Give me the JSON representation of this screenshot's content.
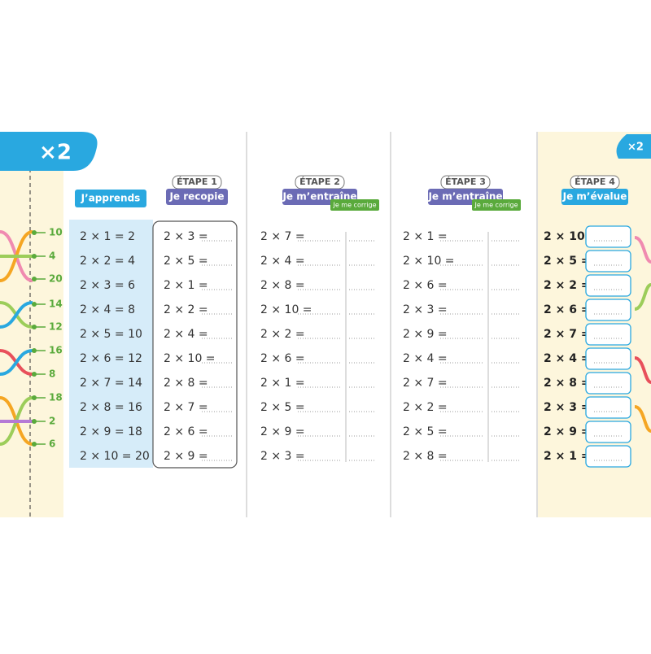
{
  "left_badge": "×2",
  "right_badge": "×2",
  "strip_numbers": [
    "10",
    "4",
    "20",
    "14",
    "12",
    "16",
    "8",
    "18",
    "2",
    "6"
  ],
  "apprends": {
    "label": "J’apprends",
    "rows": [
      "2 × 1 = 2",
      "2 × 2 = 4",
      "2 × 3 = 6",
      "2 × 4 = 8",
      "2 × 5 = 10",
      "2 × 6 = 12",
      "2 × 7 = 14",
      "2 × 8 = 16",
      "2 × 9 = 18",
      "2 × 10 = 20"
    ]
  },
  "etapes": [
    {
      "step": "ÉTAPE 1",
      "title": "Je recopie",
      "rows": [
        "2 × 3 =",
        "2 × 5 =",
        "2 × 1 =",
        "2 × 2 =",
        "2 × 4 =",
        "2 × 10 =",
        "2 × 8 =",
        "2 × 7 =",
        "2 × 6 =",
        "2 × 9 ="
      ]
    },
    {
      "step": "ÉTAPE 2",
      "title": "Je m’entraîne",
      "subtitle": "Je me corrige",
      "rows": [
        "2 × 7 =",
        "2 × 4 =",
        "2 × 8 =",
        "2 × 10 =",
        "2 × 2 =",
        "2 × 6 =",
        "2 × 1 =",
        "2 × 5 =",
        "2 × 9 =",
        "2 × 3 ="
      ]
    },
    {
      "step": "ÉTAPE 3",
      "title": "Je m’entraîne",
      "subtitle": "Je me corrige",
      "rows": [
        "2 × 1 =",
        "2 × 10 =",
        "2 × 6 =",
        "2 × 3 =",
        "2 × 9 =",
        "2 × 4 =",
        "2 × 7 =",
        "2 × 2 =",
        "2 × 5 =",
        "2 × 8 ="
      ]
    },
    {
      "step": "ÉTAPE 4",
      "title": "Je m’évalue",
      "rows": [
        "2 × 10 =",
        "2 × 5 =",
        "2 × 2 =",
        "2 × 6 =",
        "2 × 7 =",
        "2 × 4 =",
        "2 × 8 =",
        "2 × 3 =",
        "2 × 9 =",
        "2 × 1 ="
      ]
    }
  ]
}
